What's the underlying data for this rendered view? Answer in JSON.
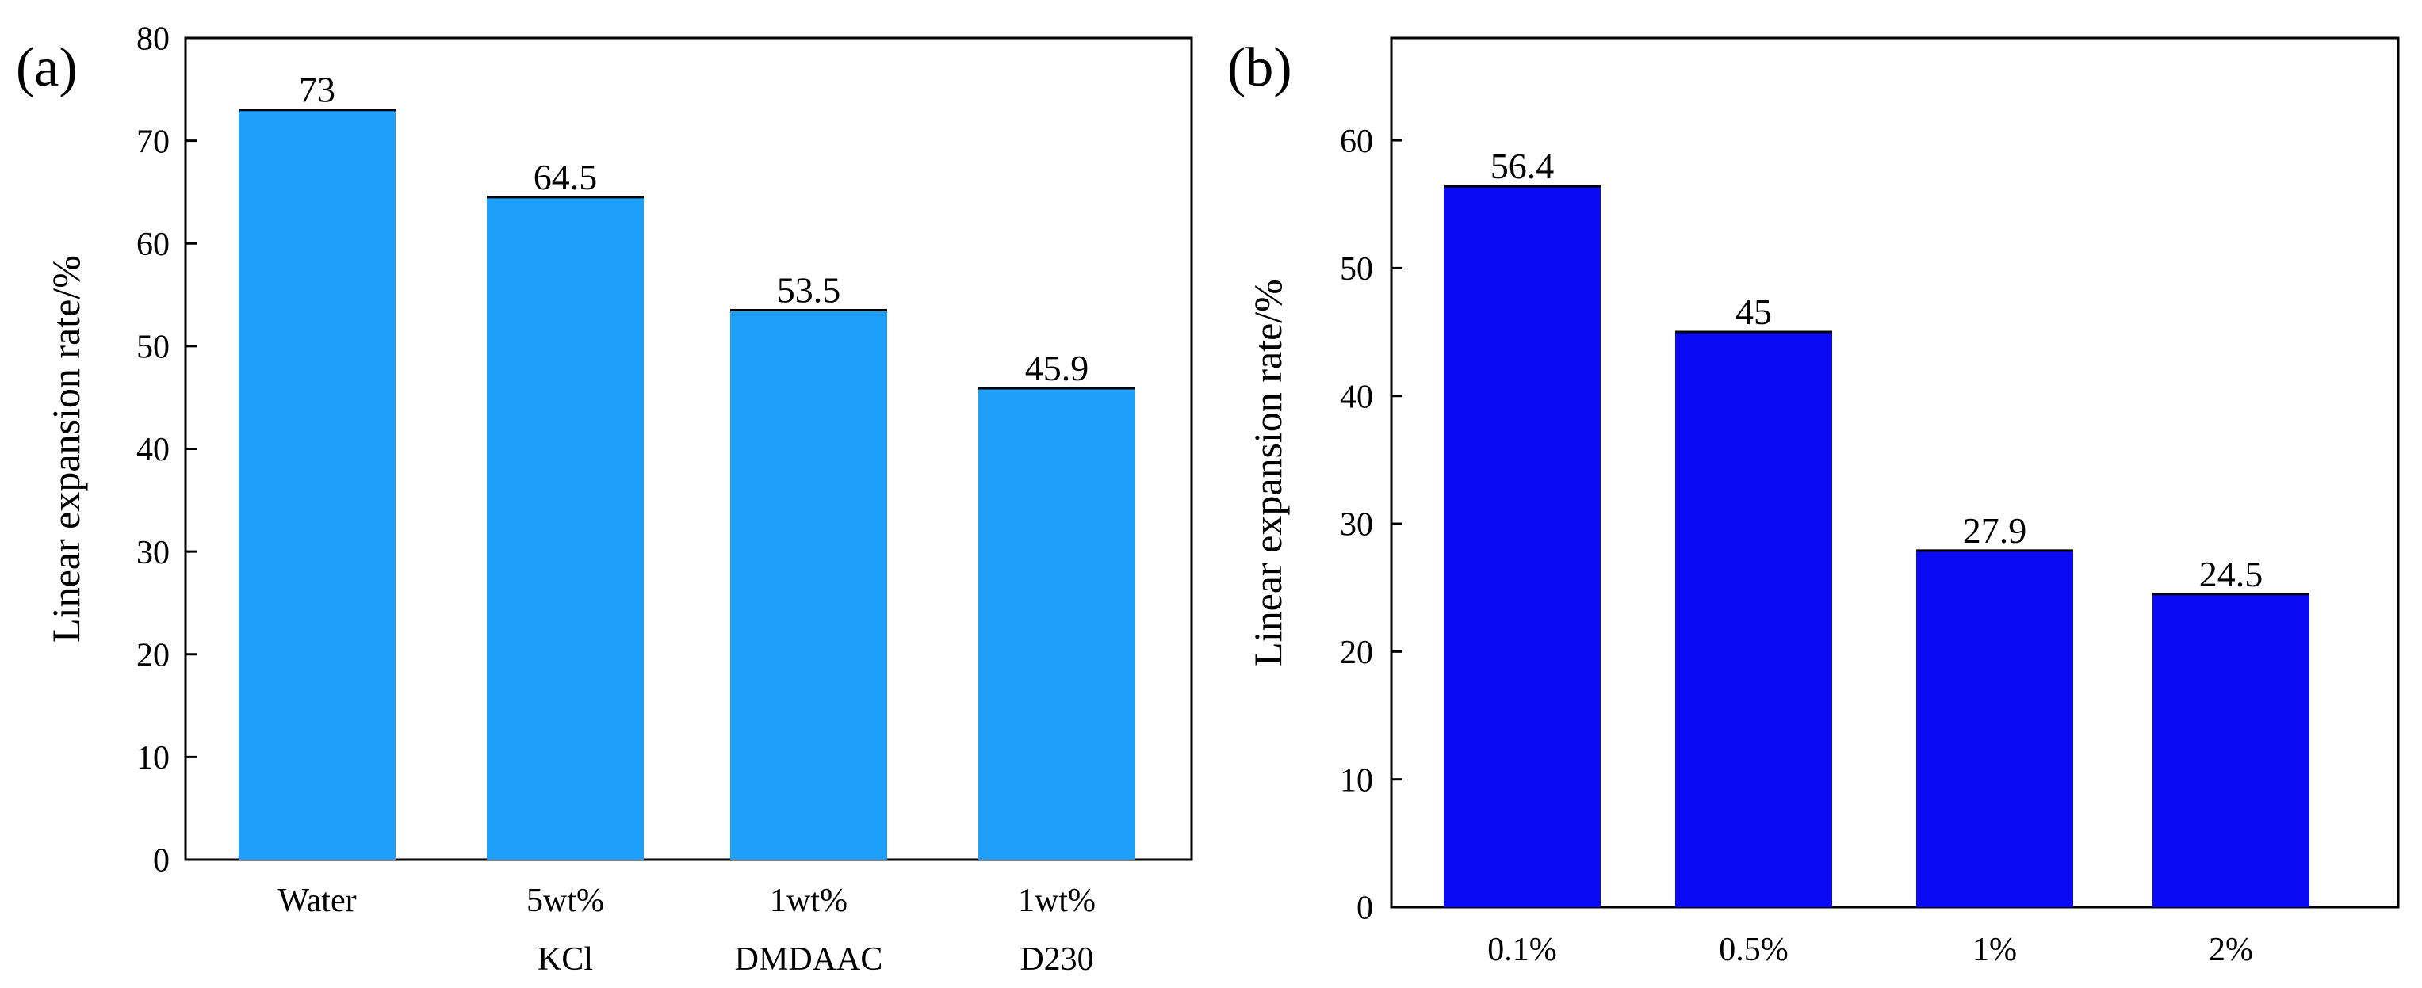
{
  "chart_data": [
    {
      "panel_label": "(a)",
      "type": "bar",
      "title": "",
      "xlabel": "",
      "ylabel": "Linear expansion rate/%",
      "categories": [
        [
          "Water"
        ],
        [
          "5wt%",
          "KCl"
        ],
        [
          "1wt%",
          "DMDAAC"
        ],
        [
          "1wt%",
          "D230"
        ]
      ],
      "values": [
        73,
        64.5,
        53.5,
        45.9
      ],
      "data_labels": [
        "73",
        "64.5",
        "53.5",
        "45.9"
      ],
      "ylim": [
        0,
        80
      ],
      "yticks": [
        "0",
        "10",
        "20",
        "30",
        "40",
        "50",
        "60",
        "70",
        "80"
      ],
      "bar_color": "#1E9FFA",
      "grid": false,
      "legend": "none"
    },
    {
      "panel_label": "(b)",
      "type": "bar",
      "title": "",
      "xlabel": "",
      "ylabel": "Linear expansion rate/%",
      "categories": [
        [
          "0.1%"
        ],
        [
          "0.5%"
        ],
        [
          "1%"
        ],
        [
          "2%"
        ]
      ],
      "values": [
        56.4,
        45,
        27.9,
        24.5
      ],
      "data_labels": [
        "56.4",
        "45",
        "27.9",
        "24.5"
      ],
      "ylim": [
        0,
        68
      ],
      "yticks": [
        "0",
        "10",
        "20",
        "30",
        "40",
        "50",
        "60"
      ],
      "bar_color": "#0A0AF5",
      "grid": false,
      "legend": "none"
    }
  ]
}
